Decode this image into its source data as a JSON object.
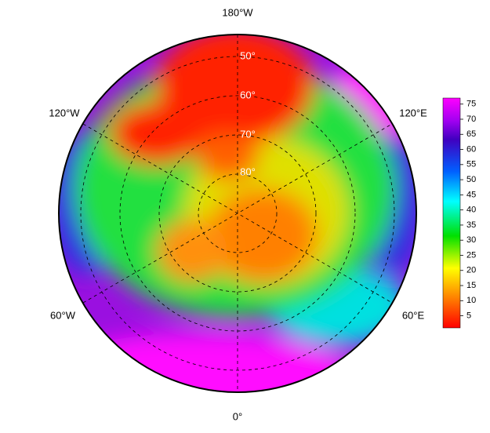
{
  "map": {
    "longitude_labels": [
      "180°W",
      "120°W",
      "120°E",
      "60°W",
      "60°E",
      "0°"
    ],
    "latitude_labels": [
      "50°",
      "60°",
      "70°",
      "80°"
    ]
  },
  "colorbar": {
    "range": [
      1,
      77
    ],
    "ticks": [
      5,
      10,
      15,
      20,
      25,
      30,
      35,
      40,
      45,
      50,
      55,
      60,
      65,
      70,
      75
    ]
  }
}
